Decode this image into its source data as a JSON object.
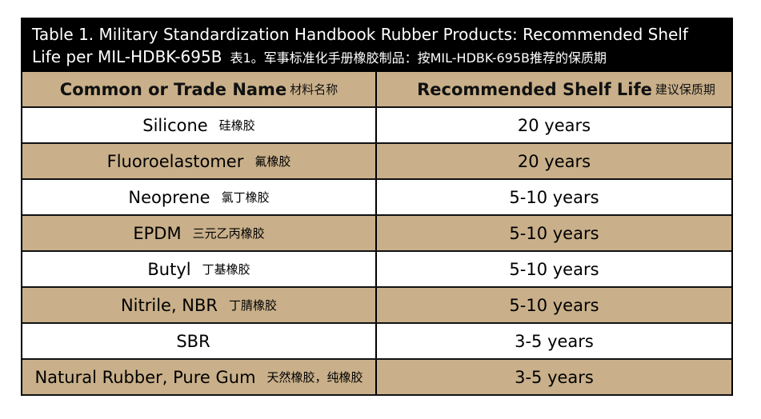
{
  "title": {
    "line1": "Table 1. Military Standardization Handbook Rubber Products: Recommended Shelf",
    "line2": "Life per MIL-HDBK-695B",
    "line2_cn": "表1。军事标准化手册橡胶制品：按MIL-HDBK-695B推荐的保质期"
  },
  "columns": [
    {
      "label": "Common or Trade Name",
      "label_cn": "材料名称"
    },
    {
      "label": "Recommended Shelf Life",
      "label_cn": "建议保质期"
    }
  ],
  "rows": [
    {
      "name": "Silicone",
      "name_cn": "硅橡胶",
      "life": "20 years"
    },
    {
      "name": "Fluoroelastomer",
      "name_cn": "氟橡胶",
      "life": "20 years"
    },
    {
      "name": "Neoprene",
      "name_cn": "氯丁橡胶",
      "life": "5-10 years"
    },
    {
      "name": "EPDM",
      "name_cn": "三元乙丙橡胶",
      "life": "5-10 years"
    },
    {
      "name": "Butyl",
      "name_cn": "丁基橡胶",
      "life": "5-10 years"
    },
    {
      "name": "Nitrile, NBR",
      "name_cn": "丁腈橡胶",
      "life": "5-10 years"
    },
    {
      "name": "SBR",
      "name_cn": "",
      "life": "3-5 years"
    },
    {
      "name": "Natural Rubber, Pure Gum",
      "name_cn": "天然橡胶，纯橡胶",
      "life": "3-5 years"
    }
  ],
  "colors": {
    "header_bg": "#000000",
    "tan": "#c9b08a",
    "white": "#ffffff"
  }
}
